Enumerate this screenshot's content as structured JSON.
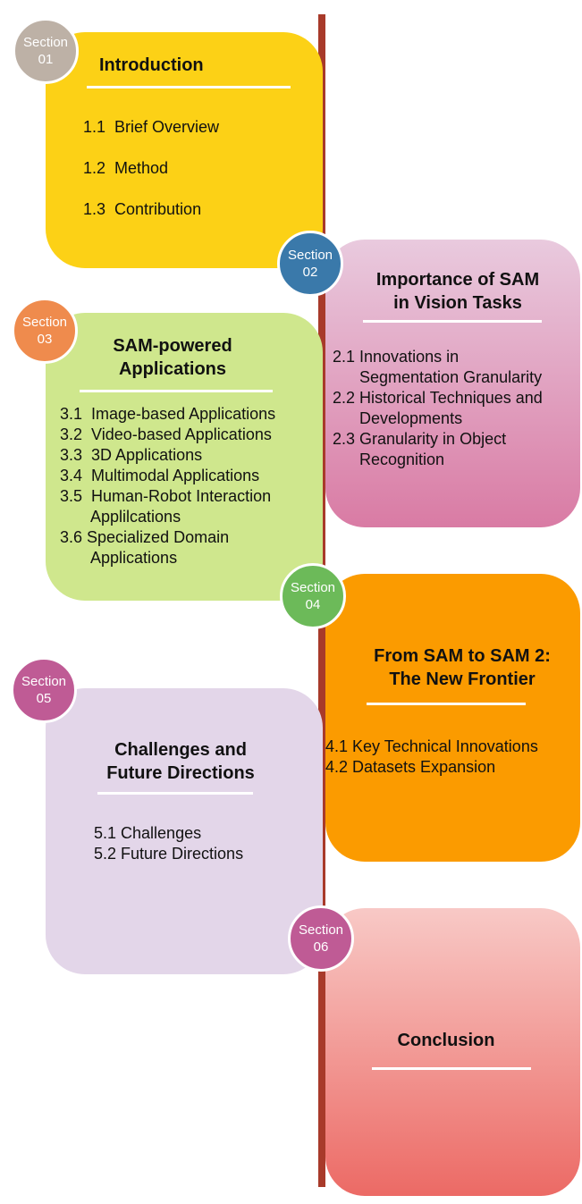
{
  "sections": [
    {
      "badge": [
        "Section",
        "01"
      ],
      "title": "Introduction",
      "items": [
        "1.1  Brief Overview",
        "1.2  Method",
        "1.3  Contribution"
      ],
      "color": "#fcd116",
      "badge_color": "#bdb1a6"
    },
    {
      "badge": [
        "Section",
        "02"
      ],
      "title": "Importance of SAM\nin Vision Tasks",
      "items": [
        "2.1 Innovations in",
        "      Segmentation Granularity",
        "2.2 Historical Techniques and",
        "      Developments",
        "2.3 Granularity in Object",
        "      Recognition"
      ],
      "color": "#e3a6c4",
      "badge_color": "#3a79aa"
    },
    {
      "badge": [
        "Section",
        "03"
      ],
      "title": "SAM-powered\nApplications",
      "items": [
        "3.1  Image-based Applications",
        "3.2  Video-based Applications",
        "3.3  3D Applications",
        "3.4  Multimodal Applications",
        "3.5  Human-Robot Interaction",
        "       Applilcations",
        "3.6 Specialized Domain",
        "       Applications"
      ],
      "color": "#cfe78d",
      "badge_color": "#ef8b4d"
    },
    {
      "badge": [
        "Section",
        "04"
      ],
      "title": "From SAM to SAM 2:\nThe New Frontier",
      "items": [
        "4.1 Key Technical Innovations",
        "4.2 Datasets Expansion"
      ],
      "color": "#fb9b00",
      "badge_color": "#6cba59"
    },
    {
      "badge": [
        "Section",
        "05"
      ],
      "title": "Challenges and\nFuture Directions",
      "items": [
        "5.1 Challenges",
        "5.2 Future Directions"
      ],
      "color": "#e3d6e9",
      "badge_color": "#bf5b95"
    },
    {
      "badge": [
        "Section",
        "06"
      ],
      "title": "Conclusion",
      "items": [],
      "color": "#f19a94",
      "badge_color": "#bf5b95"
    }
  ],
  "timeline_color": "#a83a2a"
}
